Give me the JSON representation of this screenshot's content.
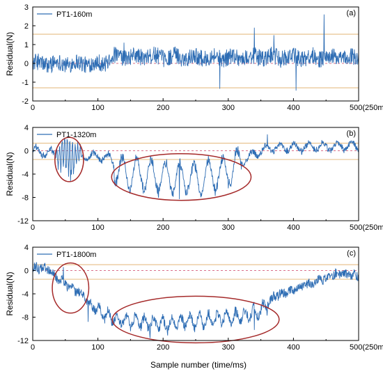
{
  "figure": {
    "xlabel": "Sample number (time/ms)",
    "colors": {
      "signal": "#2e6db4",
      "threshold": "#e8c490",
      "zero_line": "#d9708a",
      "ellipse": "#a52a2a"
    }
  },
  "chart_data": [
    {
      "type": "line",
      "panel_tag": "(a)",
      "series": [
        {
          "name": "PT1-160m"
        }
      ],
      "ylabel": "Residual(N)",
      "xlim": [
        0,
        500
      ],
      "ylim": [
        -2,
        3
      ],
      "xticks": [
        0,
        100,
        200,
        300,
        400,
        500
      ],
      "xtick_labels": [
        "0",
        "100",
        "200",
        "300",
        "400",
        "500(250ms)"
      ],
      "yticks": [
        -2,
        -1,
        0,
        1,
        2,
        3
      ],
      "ytick_labels": [
        "-2",
        "-1",
        "0",
        "1",
        "2",
        "3"
      ],
      "thresholds": [
        1.55,
        -1.3
      ],
      "zero_line": 0,
      "waveform": {
        "segments": [
          [
            0,
            0.0
          ],
          [
            110,
            0.0
          ],
          [
            120,
            0.35
          ],
          [
            500,
            0.3
          ]
        ],
        "noise_amp": 0.45,
        "osc_amp": 0.1,
        "osc_period": 30,
        "spikes": [
          [
            447,
            2.6
          ],
          [
            340,
            1.9
          ],
          [
            287,
            -1.35
          ],
          [
            404,
            -1.45
          ],
          [
            140,
            1.1
          ],
          [
            370,
            1.5
          ]
        ]
      },
      "ellipses": []
    },
    {
      "type": "line",
      "panel_tag": "(b)",
      "series": [
        {
          "name": "PT1-1320m"
        }
      ],
      "ylabel": "Residual(N)",
      "xlim": [
        0,
        500
      ],
      "ylim": [
        -12,
        4
      ],
      "xticks": [
        0,
        100,
        200,
        300,
        400,
        500
      ],
      "xtick_labels": [
        "0",
        "100",
        "200",
        "300",
        "400",
        "500(250ms)"
      ],
      "yticks": [
        -12,
        -8,
        -4,
        0,
        4
      ],
      "ytick_labels": [
        "-12",
        "-8",
        "-4",
        "0",
        "4"
      ],
      "thresholds": [
        1.3,
        -1.5
      ],
      "zero_line": 0,
      "waveform": {
        "segments": [
          [
            0,
            0.0
          ],
          [
            30,
            -0.5
          ],
          [
            80,
            -0.8
          ],
          [
            120,
            -1.2
          ],
          [
            130,
            -3.5
          ],
          [
            200,
            -4.5
          ],
          [
            260,
            -4.8
          ],
          [
            300,
            -3.5
          ],
          [
            330,
            -1.2
          ],
          [
            360,
            0.5
          ],
          [
            500,
            0.8
          ]
        ],
        "noise_amp": 0.5,
        "osc_amp": 2.6,
        "osc_period": 22,
        "osc_range": [
          125,
          320
        ],
        "burst": {
          "center": 55,
          "width": 22,
          "amp": 4.2,
          "period": 4
        },
        "spikes": [
          [
            225,
            -8.3
          ],
          [
            58,
            -5.3
          ],
          [
            360,
            2.8
          ]
        ]
      },
      "ellipses": [
        {
          "cx": 56,
          "cy": -1.5,
          "rx": 22,
          "ry": 3.8
        },
        {
          "cx": 228,
          "cy": -4.5,
          "rx": 107,
          "ry": 4.0
        }
      ]
    },
    {
      "type": "line",
      "panel_tag": "(c)",
      "series": [
        {
          "name": "PT1-1800m"
        }
      ],
      "ylabel": "Residual(N)",
      "xlim": [
        0,
        500
      ],
      "ylim": [
        -12,
        4
      ],
      "xticks": [
        0,
        100,
        200,
        300,
        400,
        500
      ],
      "xtick_labels": [
        "0",
        "100",
        "200",
        "300",
        "400",
        "500(250ms)"
      ],
      "yticks": [
        -12,
        -8,
        -4,
        0,
        4
      ],
      "ytick_labels": [
        "-12",
        "-8",
        "-4",
        "0",
        "4"
      ],
      "thresholds": [
        1.0,
        -1.5
      ],
      "zero_line": 0,
      "waveform": {
        "segments": [
          [
            0,
            0.5
          ],
          [
            25,
            0.3
          ],
          [
            40,
            -1.5
          ],
          [
            60,
            -3.0
          ],
          [
            80,
            -4.5
          ],
          [
            90,
            -6.0
          ],
          [
            100,
            -7.0
          ],
          [
            130,
            -8.5
          ],
          [
            200,
            -9.2
          ],
          [
            260,
            -8.5
          ],
          [
            320,
            -7.8
          ],
          [
            350,
            -7.0
          ],
          [
            370,
            -4.5
          ],
          [
            400,
            -3.2
          ],
          [
            430,
            -2.0
          ],
          [
            470,
            -0.5
          ],
          [
            500,
            -1.0
          ]
        ],
        "noise_amp": 0.8,
        "osc_amp": 1.0,
        "osc_period": 14,
        "osc_range": [
          100,
          360
        ],
        "spikes": [
          [
            180,
            -11.6
          ],
          [
            340,
            -10.2
          ],
          [
            85,
            -8.8
          ],
          [
            47,
            0.6
          ]
        ]
      },
      "ellipses": [
        {
          "cx": 58,
          "cy": -3.0,
          "rx": 28,
          "ry": 4.3
        },
        {
          "cx": 250,
          "cy": -8.4,
          "rx": 128,
          "ry": 4.0
        }
      ]
    }
  ]
}
